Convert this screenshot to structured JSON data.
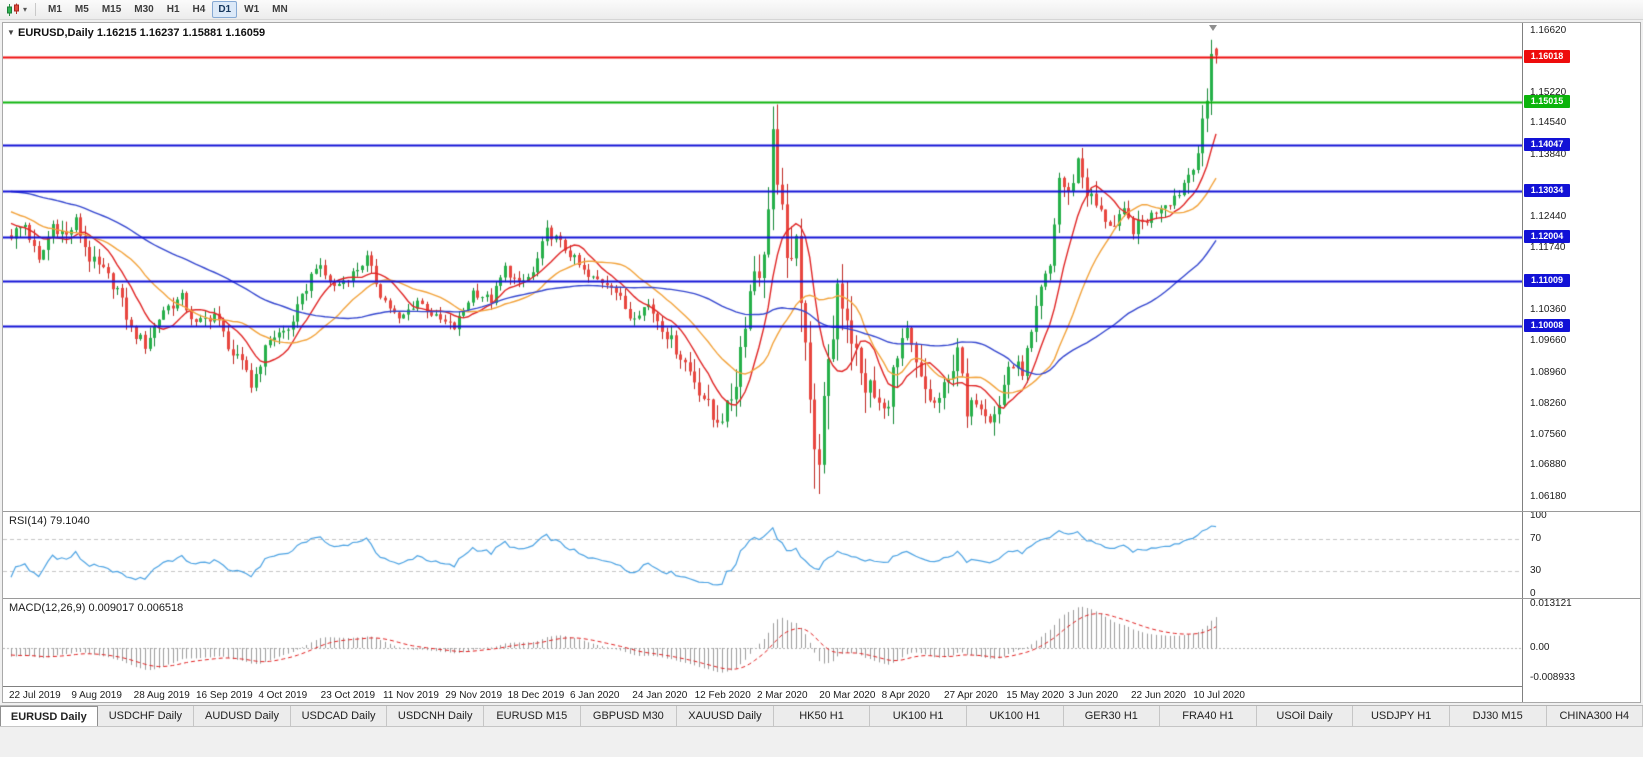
{
  "toolbar": {
    "timeframes": [
      {
        "label": "M1",
        "active": false
      },
      {
        "label": "M5",
        "active": false
      },
      {
        "label": "M15",
        "active": false
      },
      {
        "label": "M30",
        "active": false
      },
      {
        "label": "H1",
        "active": false
      },
      {
        "label": "H4",
        "active": false
      },
      {
        "label": "D1",
        "active": true
      },
      {
        "label": "W1",
        "active": false
      },
      {
        "label": "MN",
        "active": false
      }
    ]
  },
  "chart": {
    "title_line": "EURUSD,Daily  1.16215 1.16237 1.15881 1.16059"
  },
  "rsi": {
    "label": "RSI(14) 79.1040"
  },
  "macd": {
    "label": "MACD(12,26,9) 0.009017 0.006518"
  },
  "date_axis": [
    "22 Jul 2019",
    "9 Aug 2019",
    "28 Aug 2019",
    "16 Sep 2019",
    "4 Oct 2019",
    "23 Oct 2019",
    "11 Nov 2019",
    "29 Nov 2019",
    "18 Dec 2019",
    "6 Jan 2020",
    "24 Jan 2020",
    "12 Feb 2020",
    "2 Mar 2020",
    "20 Mar 2020",
    "8 Apr 2020",
    "27 Apr 2020",
    "15 May 2020",
    "3 Jun 2020",
    "22 Jun 2020",
    "10 Jul 2020"
  ],
  "tabs": [
    {
      "label": "EURUSD Daily",
      "active": true
    },
    {
      "label": "USDCHF Daily",
      "active": false
    },
    {
      "label": "AUDUSD Daily",
      "active": false
    },
    {
      "label": "USDCAD Daily",
      "active": false
    },
    {
      "label": "USDCNH Daily",
      "active": false
    },
    {
      "label": "EURUSD M15",
      "active": false
    },
    {
      "label": "GBPUSD M30",
      "active": false
    },
    {
      "label": "XAUUSD Daily",
      "active": false
    },
    {
      "label": "HK50 H1",
      "active": false
    },
    {
      "label": "UK100 H1",
      "active": false
    },
    {
      "label": "UK100 H1",
      "active": false
    },
    {
      "label": "GER30 H1",
      "active": false
    },
    {
      "label": "FRA40 H1",
      "active": false
    },
    {
      "label": "USOil Daily",
      "active": false
    },
    {
      "label": "USDJPY H1",
      "active": false
    },
    {
      "label": "DJ30 M15",
      "active": false
    },
    {
      "label": "CHINA300 H4",
      "active": false
    }
  ],
  "chart_data": {
    "type": "candlestick",
    "symbol": "EURUSD",
    "period": "Daily",
    "last_candle": {
      "open": 1.16215,
      "high": 1.16237,
      "low": 1.15881,
      "close": 1.16059
    },
    "view": {
      "price_max": 1.1679,
      "price_min": 1.0586
    },
    "num_candles": 262,
    "series_start_index": -60,
    "price_axis_ticks": [
      "1.16620",
      "1.15220",
      "1.14540",
      "1.13840",
      "1.12440",
      "1.11740",
      "1.10360",
      "1.09660",
      "1.08960",
      "1.08260",
      "1.07560",
      "1.06880",
      "1.06180"
    ],
    "horizontal_levels": [
      {
        "price": 1.16018,
        "label": "1.16018",
        "color": "#ee0c0c",
        "role": "resistance"
      },
      {
        "price": 1.15015,
        "label": "1.15015",
        "color": "#0cb40c",
        "role": "support"
      },
      {
        "price": 1.14047,
        "label": "1.14047",
        "color": "#1212d6",
        "role": "support"
      },
      {
        "price": 1.13034,
        "label": "1.13034",
        "color": "#1212d6",
        "role": "support"
      },
      {
        "price": 1.12004,
        "label": "1.12004",
        "color": "#1212d6",
        "role": "support"
      },
      {
        "price": 1.11009,
        "label": "1.11009",
        "color": "#1212d6",
        "role": "support"
      },
      {
        "price": 1.10008,
        "label": "1.10008",
        "color": "#1212d6",
        "role": "support"
      }
    ],
    "close_anchors": [
      [
        -60,
        1.1225
      ],
      [
        -48,
        1.1298
      ],
      [
        -36,
        1.1378
      ],
      [
        -20,
        1.1302
      ],
      [
        -10,
        1.1258
      ],
      [
        0,
        1.1205
      ],
      [
        3,
        1.1228
      ],
      [
        6,
        1.1142
      ],
      [
        9,
        1.1228
      ],
      [
        12,
        1.1202
      ],
      [
        14,
        1.1234
      ],
      [
        17,
        1.1152
      ],
      [
        20,
        1.1122
      ],
      [
        23,
        1.1082
      ],
      [
        26,
        1.0992
      ],
      [
        29,
        1.0958
      ],
      [
        33,
        1.1038
      ],
      [
        37,
        1.1062
      ],
      [
        40,
        1.1002
      ],
      [
        44,
        1.1028
      ],
      [
        48,
        1.0936
      ],
      [
        51,
        1.0902
      ],
      [
        52,
        1.0866
      ],
      [
        56,
        1.0974
      ],
      [
        60,
        1.0992
      ],
      [
        63,
        1.1062
      ],
      [
        66,
        1.1138
      ],
      [
        70,
        1.1088
      ],
      [
        74,
        1.1118
      ],
      [
        77,
        1.1152
      ],
      [
        80,
        1.1072
      ],
      [
        84,
        1.1012
      ],
      [
        88,
        1.1058
      ],
      [
        92,
        1.1018
      ],
      [
        96,
        1.0996
      ],
      [
        100,
        1.1078
      ],
      [
        104,
        1.1058
      ],
      [
        107,
        1.113
      ],
      [
        110,
        1.1092
      ],
      [
        113,
        1.1118
      ],
      [
        116,
        1.1212
      ],
      [
        118,
        1.1196
      ],
      [
        121,
        1.1162
      ],
      [
        125,
        1.1108
      ],
      [
        130,
        1.1096
      ],
      [
        134,
        1.1022
      ],
      [
        138,
        1.1048
      ],
      [
        142,
        1.0982
      ],
      [
        146,
        1.0918
      ],
      [
        150,
        1.0842
      ],
      [
        152,
        1.0792
      ],
      [
        155,
        1.0808
      ],
      [
        157,
        1.0882
      ],
      [
        159,
        1.1022
      ],
      [
        161,
        1.1132
      ],
      [
        163,
        1.1138
      ],
      [
        165,
        1.1438
      ],
      [
        166,
        1.1282
      ],
      [
        168,
        1.1186
      ],
      [
        169,
        1.1108
      ],
      [
        170,
        1.118
      ],
      [
        172,
        1.0996
      ],
      [
        174,
        1.0692
      ],
      [
        175,
        1.0732
      ],
      [
        177,
        1.088
      ],
      [
        179,
        1.1098
      ],
      [
        181,
        1.1032
      ],
      [
        184,
        1.0882
      ],
      [
        186,
        1.0858
      ],
      [
        189,
        1.0802
      ],
      [
        191,
        1.0892
      ],
      [
        194,
        1.0978
      ],
      [
        197,
        1.0872
      ],
      [
        200,
        1.0822
      ],
      [
        203,
        1.0872
      ],
      [
        205,
        1.0962
      ],
      [
        207,
        1.0792
      ],
      [
        209,
        1.0842
      ],
      [
        212,
        1.0802
      ],
      [
        214,
        1.0822
      ],
      [
        216,
        1.0912
      ],
      [
        219,
        1.0902
      ],
      [
        221,
        1.0978
      ],
      [
        223,
        1.1078
      ],
      [
        225,
        1.1132
      ],
      [
        227,
        1.1332
      ],
      [
        229,
        1.1292
      ],
      [
        231,
        1.1372
      ],
      [
        233,
        1.1302
      ],
      [
        236,
        1.1252
      ],
      [
        239,
        1.1222
      ],
      [
        241,
        1.1252
      ],
      [
        243,
        1.1218
      ],
      [
        245,
        1.1232
      ],
      [
        247,
        1.1248
      ],
      [
        249,
        1.1272
      ],
      [
        251,
        1.1282
      ],
      [
        253,
        1.1302
      ],
      [
        255,
        1.1342
      ],
      [
        257,
        1.1392
      ],
      [
        259,
        1.1502
      ],
      [
        260,
        1.1622
      ],
      [
        261,
        1.16059
      ]
    ],
    "volatility_anchors": [
      [
        -60,
        0.0026
      ],
      [
        20,
        0.0028
      ],
      [
        50,
        0.0026
      ],
      [
        80,
        0.002
      ],
      [
        110,
        0.002
      ],
      [
        140,
        0.0024
      ],
      [
        148,
        0.0038
      ],
      [
        158,
        0.006
      ],
      [
        164,
        0.0085
      ],
      [
        170,
        0.0095
      ],
      [
        176,
        0.011
      ],
      [
        182,
        0.0085
      ],
      [
        190,
        0.0058
      ],
      [
        200,
        0.0048
      ],
      [
        210,
        0.004
      ],
      [
        220,
        0.0034
      ],
      [
        230,
        0.0042
      ],
      [
        240,
        0.003
      ],
      [
        250,
        0.0026
      ],
      [
        261,
        0.0042
      ]
    ],
    "swing_points": [
      {
        "index": 165,
        "high": 1.1492
      },
      {
        "index": 175,
        "low": 1.0638
      },
      {
        "index": 152,
        "low": 1.0778
      },
      {
        "index": 260,
        "high": 1.16414
      }
    ],
    "candle_colors": {
      "up_fill": "#26b04a",
      "up_stroke": "#168a37",
      "down_fill": "#e8463f",
      "down_stroke": "#bf2b24"
    },
    "moving_averages": [
      {
        "name": "MA fast",
        "period": 9,
        "color": "#e02626"
      },
      {
        "name": "MA medium",
        "period": 20,
        "color": "#f2a33c"
      },
      {
        "name": "MA slow",
        "period": 52,
        "color": "#3547cf"
      }
    ],
    "rsi_indicator": {
      "period": 14,
      "current": 79.104,
      "levels": [
        100,
        70,
        30,
        0
      ],
      "color": "#4da3e3"
    },
    "macd_indicator": {
      "fast": 12,
      "slow": 26,
      "signal": 9,
      "macd_value": 0.009017,
      "signal_value": 0.006518,
      "axis_ticks": [
        "0.013121",
        "0.00",
        "-0.008933"
      ],
      "histogram_color": "#9c9c9c",
      "signal_color": "#e02020"
    }
  }
}
